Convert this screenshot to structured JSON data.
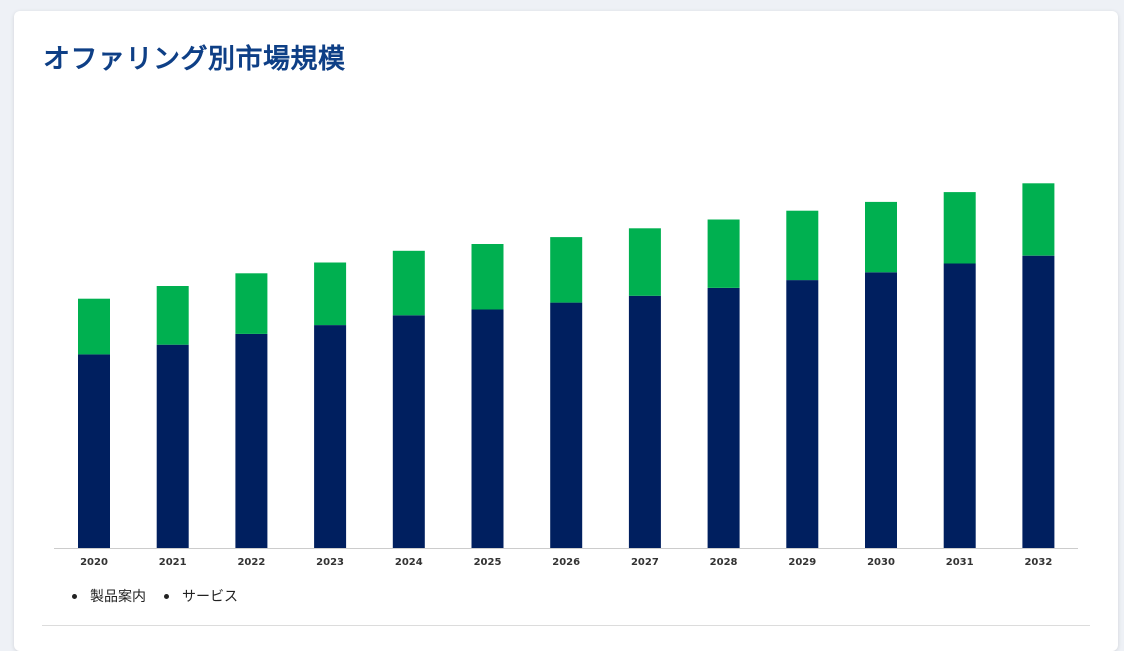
{
  "page": {
    "title": "オファリング別市場規模"
  },
  "legend": {
    "items": [
      "製品案内",
      "サービス"
    ]
  },
  "colors": {
    "title": "#0e3f86",
    "product": "#001f5f",
    "service": "#00b050",
    "axis": "#cccccc"
  },
  "chart_data": {
    "type": "bar",
    "stacked": true,
    "categories": [
      "2020",
      "2021",
      "2022",
      "2023",
      "2024",
      "2025",
      "2026",
      "2027",
      "2028",
      "2029",
      "2030",
      "2031",
      "2032"
    ],
    "series": [
      {
        "name": "製品案内",
        "color": "#001f5f",
        "values": [
          198,
          208,
          219,
          228,
          238,
          244,
          251,
          258,
          266,
          274,
          282,
          291,
          299
        ]
      },
      {
        "name": "サービス",
        "color": "#00b050",
        "values": [
          57,
          60,
          62,
          64,
          66,
          67,
          67,
          69,
          70,
          71,
          72,
          73,
          74
        ]
      }
    ],
    "ylim": [
      0,
      390
    ],
    "xlabel": "",
    "ylabel": "",
    "grid": false,
    "legend_position": "bottom-left"
  }
}
